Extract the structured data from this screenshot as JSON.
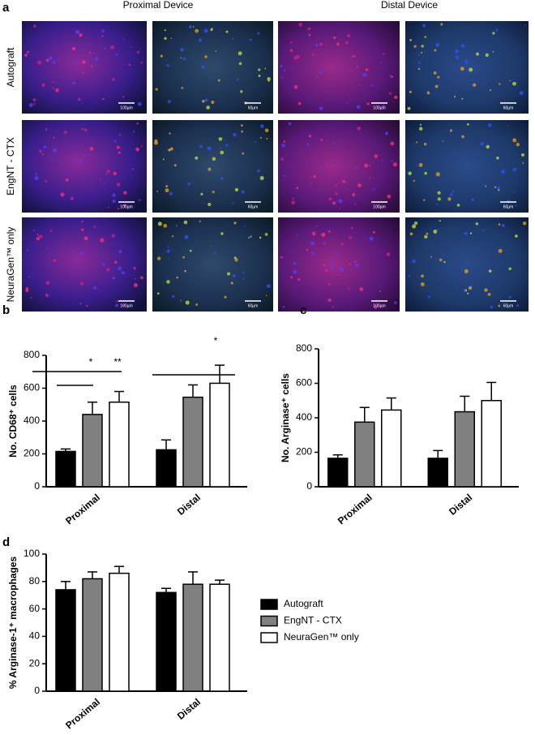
{
  "micrographs": {
    "panel_label": "a",
    "columns": [
      "Proximal Device",
      "Distal Device"
    ],
    "rows": [
      "Autograft",
      "EngNT - CTX",
      "NeuraGen™ only"
    ],
    "scale_bars": [
      "100µm",
      "60µm",
      "100µm",
      "60µm"
    ]
  },
  "chart_data": [
    {
      "type": "bar",
      "panel_label": "b",
      "ylabel": "No. CD68⁺ cells",
      "categories": [
        "Proximal",
        "Distal"
      ],
      "ylim": [
        0,
        800
      ],
      "yticks": [
        0,
        200,
        400,
        600,
        800
      ],
      "series": [
        {
          "color": "#000000",
          "values": [
            215,
            225
          ],
          "errors": [
            15,
            60
          ]
        },
        {
          "color": "#808080",
          "values": [
            440,
            545
          ],
          "errors": [
            75,
            75
          ]
        },
        {
          "color": "#ffffff",
          "values": [
            515,
            630
          ],
          "errors": [
            65,
            110
          ]
        }
      ],
      "annotations": [
        "*",
        "**",
        "*"
      ]
    },
    {
      "type": "bar",
      "panel_label": "c",
      "ylabel": "No. Arginase⁺ cells",
      "categories": [
        "Proximal",
        "Distal"
      ],
      "ylim": [
        0,
        800
      ],
      "yticks": [
        0,
        200,
        400,
        600,
        800
      ],
      "series": [
        {
          "color": "#000000",
          "values": [
            165,
            165
          ],
          "errors": [
            20,
            45
          ]
        },
        {
          "color": "#808080",
          "values": [
            375,
            435
          ],
          "errors": [
            85,
            90
          ]
        },
        {
          "color": "#ffffff",
          "values": [
            445,
            500
          ],
          "errors": [
            70,
            105
          ]
        }
      ]
    },
    {
      "type": "bar",
      "panel_label": "d",
      "ylabel": "% Arginase-1⁺ macrophages",
      "categories": [
        "Proximal",
        "Distal"
      ],
      "ylim": [
        0,
        100
      ],
      "yticks": [
        0,
        20,
        40,
        60,
        80,
        100
      ],
      "legend": "right",
      "series": [
        {
          "name": "Autograft",
          "color": "#000000",
          "values": [
            74,
            72
          ],
          "errors": [
            6,
            3
          ]
        },
        {
          "name": "EngNT - CTX",
          "color": "#808080",
          "values": [
            82,
            78
          ],
          "errors": [
            5,
            9
          ]
        },
        {
          "name": "NeuraGen™ only",
          "color": "#ffffff",
          "values": [
            86,
            78
          ],
          "errors": [
            5,
            3
          ]
        }
      ]
    }
  ]
}
